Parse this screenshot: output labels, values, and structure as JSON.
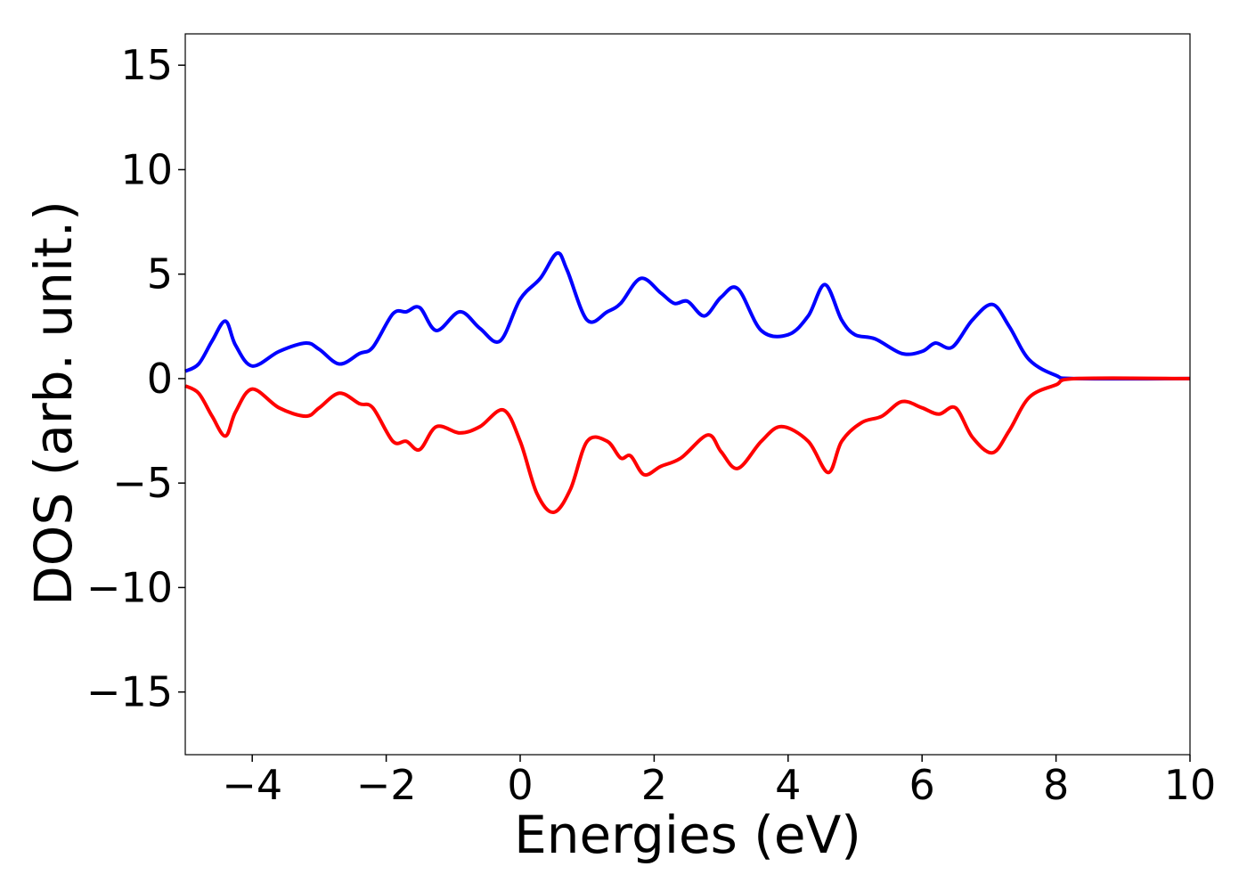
{
  "chart_data": {
    "type": "line",
    "title": "",
    "xlabel": "Energies (eV)",
    "ylabel": "DOS (arb. unit.)",
    "xlim": [
      -5,
      10
    ],
    "ylim": [
      -18,
      16.5
    ],
    "xticks": [
      -4,
      -2,
      0,
      2,
      4,
      6,
      8,
      10
    ],
    "yticks": [
      -15,
      -10,
      -5,
      0,
      5,
      10,
      15
    ],
    "xtick_labels": [
      "−4",
      "−2",
      "0",
      "2",
      "4",
      "6",
      "8",
      "10"
    ],
    "ytick_labels": [
      "−15",
      "−10",
      "−5",
      "0",
      "5",
      "10",
      "15"
    ],
    "grid": false,
    "legend": "none",
    "series": [
      {
        "color": "#0000ff",
        "points": [
          [
            -5.0,
            0.35
          ],
          [
            -4.8,
            0.7
          ],
          [
            -4.6,
            1.8
          ],
          [
            -4.4,
            2.75
          ],
          [
            -4.25,
            1.6
          ],
          [
            -4.0,
            0.6
          ],
          [
            -3.6,
            1.3
          ],
          [
            -3.2,
            1.7
          ],
          [
            -3.0,
            1.4
          ],
          [
            -2.7,
            0.7
          ],
          [
            -2.4,
            1.2
          ],
          [
            -2.2,
            1.5
          ],
          [
            -1.9,
            3.1
          ],
          [
            -1.7,
            3.2
          ],
          [
            -1.5,
            3.4
          ],
          [
            -1.25,
            2.3
          ],
          [
            -0.9,
            3.2
          ],
          [
            -0.6,
            2.4
          ],
          [
            -0.3,
            1.8
          ],
          [
            0.0,
            3.8
          ],
          [
            0.3,
            4.8
          ],
          [
            0.55,
            6.0
          ],
          [
            0.7,
            5.2
          ],
          [
            1.0,
            2.8
          ],
          [
            1.3,
            3.2
          ],
          [
            1.5,
            3.6
          ],
          [
            1.8,
            4.8
          ],
          [
            2.1,
            4.1
          ],
          [
            2.3,
            3.6
          ],
          [
            2.5,
            3.7
          ],
          [
            2.75,
            3.0
          ],
          [
            3.0,
            3.9
          ],
          [
            3.25,
            4.3
          ],
          [
            3.6,
            2.3
          ],
          [
            4.0,
            2.1
          ],
          [
            4.3,
            3.0
          ],
          [
            4.55,
            4.5
          ],
          [
            4.8,
            2.8
          ],
          [
            5.0,
            2.1
          ],
          [
            5.3,
            1.9
          ],
          [
            5.7,
            1.2
          ],
          [
            6.0,
            1.3
          ],
          [
            6.2,
            1.7
          ],
          [
            6.45,
            1.5
          ],
          [
            6.75,
            2.8
          ],
          [
            7.05,
            3.55
          ],
          [
            7.3,
            2.5
          ],
          [
            7.6,
            0.9
          ],
          [
            8.0,
            0.15
          ],
          [
            8.3,
            0.0
          ],
          [
            10.0,
            0.0
          ]
        ]
      },
      {
        "color": "#ff0000",
        "points": [
          [
            -5.0,
            -0.35
          ],
          [
            -4.8,
            -0.7
          ],
          [
            -4.6,
            -1.8
          ],
          [
            -4.4,
            -2.75
          ],
          [
            -4.25,
            -1.6
          ],
          [
            -4.0,
            -0.5
          ],
          [
            -3.6,
            -1.4
          ],
          [
            -3.2,
            -1.8
          ],
          [
            -3.0,
            -1.4
          ],
          [
            -2.7,
            -0.7
          ],
          [
            -2.4,
            -1.2
          ],
          [
            -2.2,
            -1.4
          ],
          [
            -1.9,
            -3.0
          ],
          [
            -1.7,
            -3.0
          ],
          [
            -1.5,
            -3.4
          ],
          [
            -1.25,
            -2.3
          ],
          [
            -0.9,
            -2.6
          ],
          [
            -0.6,
            -2.3
          ],
          [
            -0.25,
            -1.5
          ],
          [
            0.0,
            -3.0
          ],
          [
            0.25,
            -5.5
          ],
          [
            0.5,
            -6.4
          ],
          [
            0.75,
            -5.3
          ],
          [
            1.0,
            -3.0
          ],
          [
            1.3,
            -3.0
          ],
          [
            1.5,
            -3.8
          ],
          [
            1.65,
            -3.7
          ],
          [
            1.85,
            -4.6
          ],
          [
            2.1,
            -4.2
          ],
          [
            2.4,
            -3.8
          ],
          [
            2.8,
            -2.7
          ],
          [
            3.0,
            -3.5
          ],
          [
            3.25,
            -4.3
          ],
          [
            3.6,
            -3.0
          ],
          [
            3.9,
            -2.3
          ],
          [
            4.3,
            -3.0
          ],
          [
            4.6,
            -4.5
          ],
          [
            4.8,
            -3.0
          ],
          [
            5.1,
            -2.1
          ],
          [
            5.4,
            -1.8
          ],
          [
            5.7,
            -1.1
          ],
          [
            6.0,
            -1.4
          ],
          [
            6.25,
            -1.7
          ],
          [
            6.5,
            -1.4
          ],
          [
            6.75,
            -2.8
          ],
          [
            7.05,
            -3.55
          ],
          [
            7.3,
            -2.5
          ],
          [
            7.6,
            -0.9
          ],
          [
            8.0,
            -0.3
          ],
          [
            8.3,
            0.0
          ],
          [
            10.0,
            0.0
          ]
        ]
      }
    ]
  }
}
